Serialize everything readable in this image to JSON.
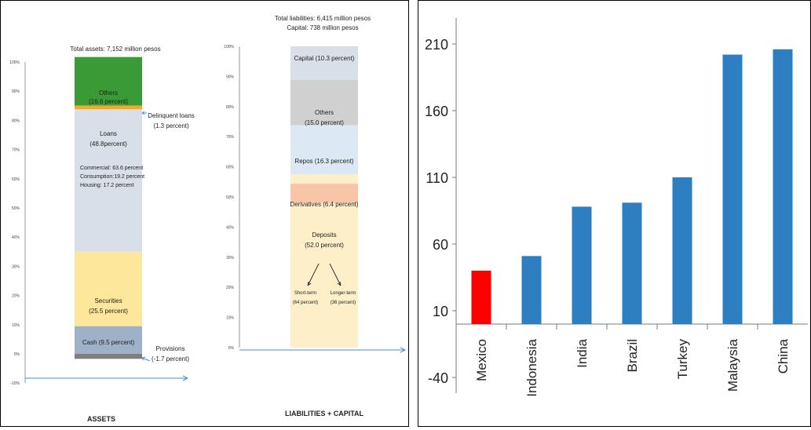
{
  "chart_data": [
    {
      "type": "stacked-bar",
      "title": "",
      "axis": {
        "ylim": [
          -10,
          100
        ],
        "ticks": [
          "-10%",
          "0%",
          "10%",
          "20%",
          "30%",
          "40%",
          "50%",
          "60%",
          "70%",
          "80%",
          "90%",
          "100%"
        ]
      },
      "columns": [
        {
          "name": "ASSETS",
          "header": [
            "Total assets: 7,152 million pesos"
          ],
          "segments": [
            {
              "label": "Provisions",
              "value": -1.7,
              "color": "#7f7f7f"
            },
            {
              "label": "Cash",
              "value": 9.5,
              "color": "#9fb1c8"
            },
            {
              "label": "Securities",
              "value": 25.5,
              "color": "#fde79a"
            },
            {
              "label": "Loans",
              "value": 48.8,
              "color": "#d9dfe8"
            },
            {
              "label": "Delinquent loans",
              "value": 1.3,
              "color": "#f4a823"
            },
            {
              "label": "Others",
              "value": 16.6,
              "color": "#3a9a35"
            }
          ],
          "texts": {
            "others": [
              "Others",
              "(16.6 percent)"
            ],
            "loans": [
              "Loans",
              "(48.8percent)"
            ],
            "loans_detail": [
              "Commercial: 63.6 percent",
              "Consumption:19.2 percent",
              "Housing: 17.2 percent"
            ],
            "securities": [
              "Securities",
              "(25.5 percent)"
            ],
            "cash": [
              "Cash (9.5 percent)"
            ],
            "delinquent": [
              "Delinquent loans",
              "(1.3 percent)"
            ],
            "provisions": [
              "Provisions",
              "(-1.7 percent)"
            ]
          }
        },
        {
          "name": "LIABILITIES + CAPITAL",
          "header": [
            "Total liabilities: 6,415 million pesos",
            "Capital: 738  million pesos"
          ],
          "segments": [
            {
              "label": "Deposits",
              "value": 52.0,
              "color": "#fdf0c8"
            },
            {
              "label": "Derivatives",
              "value": 6.4,
              "color": "#f8c5a8"
            },
            {
              "label": "Gap",
              "value": 0,
              "color": "#fdf0c8"
            },
            {
              "label": "Repos",
              "value": 16.3,
              "color": "#dce8f4"
            },
            {
              "label": "Others",
              "value": 15.0,
              "color": "#d0d0d0"
            },
            {
              "label": "Capital",
              "value": 10.3,
              "color": "#d9dfe8"
            }
          ],
          "texts": {
            "capital": [
              "Capital (10.3 percent)"
            ],
            "others": [
              "Others",
              "(15.0 percent)"
            ],
            "repos": [
              "Repos (16.3 percent)"
            ],
            "derivatives": [
              "Derivatives (6.4 percent)"
            ],
            "deposits": [
              "Deposits",
              "(52.0 percent)"
            ],
            "short": [
              "Short-term",
              "(64 percent)"
            ],
            "long": [
              "Longer-term",
              "(36 percent)"
            ]
          }
        }
      ]
    },
    {
      "type": "bar",
      "title": "",
      "categories": [
        "Mexico",
        "Indonesia",
        "India",
        "Brazil",
        "Turkey",
        "Malaysia",
        "China"
      ],
      "values": [
        40,
        51,
        88,
        91,
        110,
        202,
        206
      ],
      "colors": [
        "#ff0000",
        "#2e7fc1",
        "#2e7fc1",
        "#2e7fc1",
        "#2e7fc1",
        "#2e7fc1",
        "#2e7fc1"
      ],
      "ylim": [
        -40,
        220
      ],
      "yticks": [
        -40,
        10,
        60,
        110,
        160,
        210
      ],
      "ytick_labels": [
        "-40",
        "10",
        "60",
        "110",
        "160",
        "210"
      ],
      "xlabel": "",
      "ylabel": ""
    }
  ]
}
